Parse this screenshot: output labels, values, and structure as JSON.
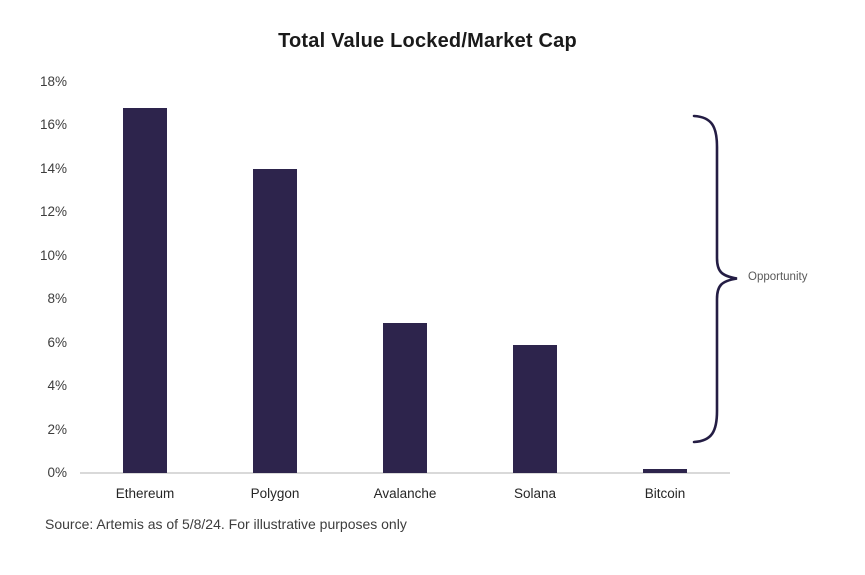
{
  "title": "Total Value Locked/Market Cap",
  "source_note": "Source: Artemis as of 5/8/24. For illustrative purposes only",
  "annotation": {
    "label": "Opportunity"
  },
  "colors": {
    "bar": "#2d244c",
    "brace": "#241d44",
    "axis_line": "#d9d9d9",
    "title_text": "#1a1a1a",
    "tick_text": "#3d3d3d",
    "category_text": "#262626",
    "annotation_text": "#595959",
    "source_text": "#3d3d3d",
    "background": "#ffffff"
  },
  "chart_data": {
    "type": "bar",
    "title": "Total Value Locked/Market Cap",
    "categories": [
      "Ethereum",
      "Polygon",
      "Avalanche",
      "Solana",
      "Bitcoin"
    ],
    "values": [
      16.8,
      14.0,
      6.9,
      5.9,
      0.2
    ],
    "xlabel": "",
    "ylabel": "",
    "ylim": [
      0,
      18
    ],
    "ytick_step": 2,
    "ytick_labels": [
      "0%",
      "2%",
      "4%",
      "6%",
      "8%",
      "10%",
      "12%",
      "14%",
      "16%",
      "18%"
    ],
    "grid": false,
    "legend": null,
    "annotations": [
      {
        "text": "Opportunity",
        "type": "right-curly-brace",
        "covers": "all categories"
      }
    ]
  }
}
